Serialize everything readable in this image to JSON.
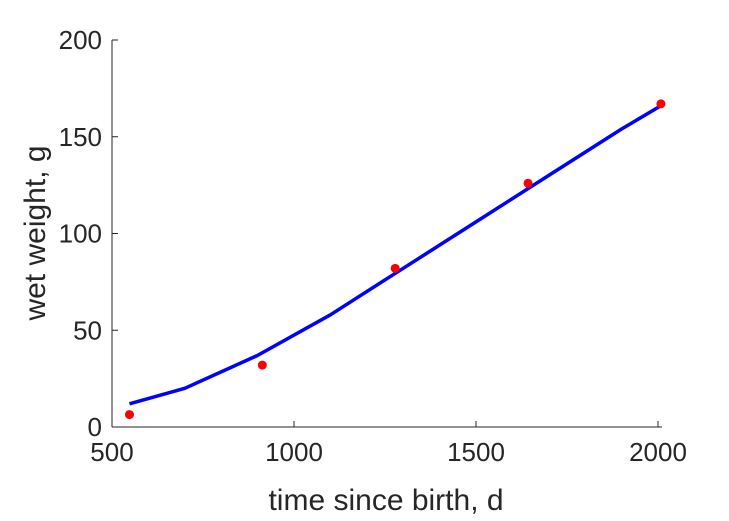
{
  "chart_data": {
    "type": "scatter",
    "title": "",
    "xlabel": "time since birth, d",
    "ylabel": "wet weight, g",
    "xlim": [
      500,
      2000
    ],
    "ylim": [
      0,
      200
    ],
    "xticks": [
      500,
      1000,
      1500,
      2000
    ],
    "yticks": [
      0,
      50,
      100,
      150,
      200
    ],
    "xtick_labels": [
      "500",
      "1000",
      "1500",
      "2000"
    ],
    "ytick_labels": [
      "0",
      "50",
      "100",
      "150",
      "200"
    ],
    "grid": false,
    "legend": "none",
    "series": [
      {
        "type": "scatter",
        "color": "#ff0000",
        "x": [
          548,
          913,
          1278,
          1643,
          2008
        ],
        "y": [
          6.4,
          32,
          82,
          126,
          167
        ]
      },
      {
        "type": "line",
        "color": "#0000ff",
        "x": [
          548,
          700,
          900,
          1100,
          1300,
          1500,
          1700,
          1900,
          2008
        ],
        "y": [
          12,
          20,
          37,
          58,
          82,
          106,
          130,
          154,
          166
        ]
      }
    ]
  }
}
